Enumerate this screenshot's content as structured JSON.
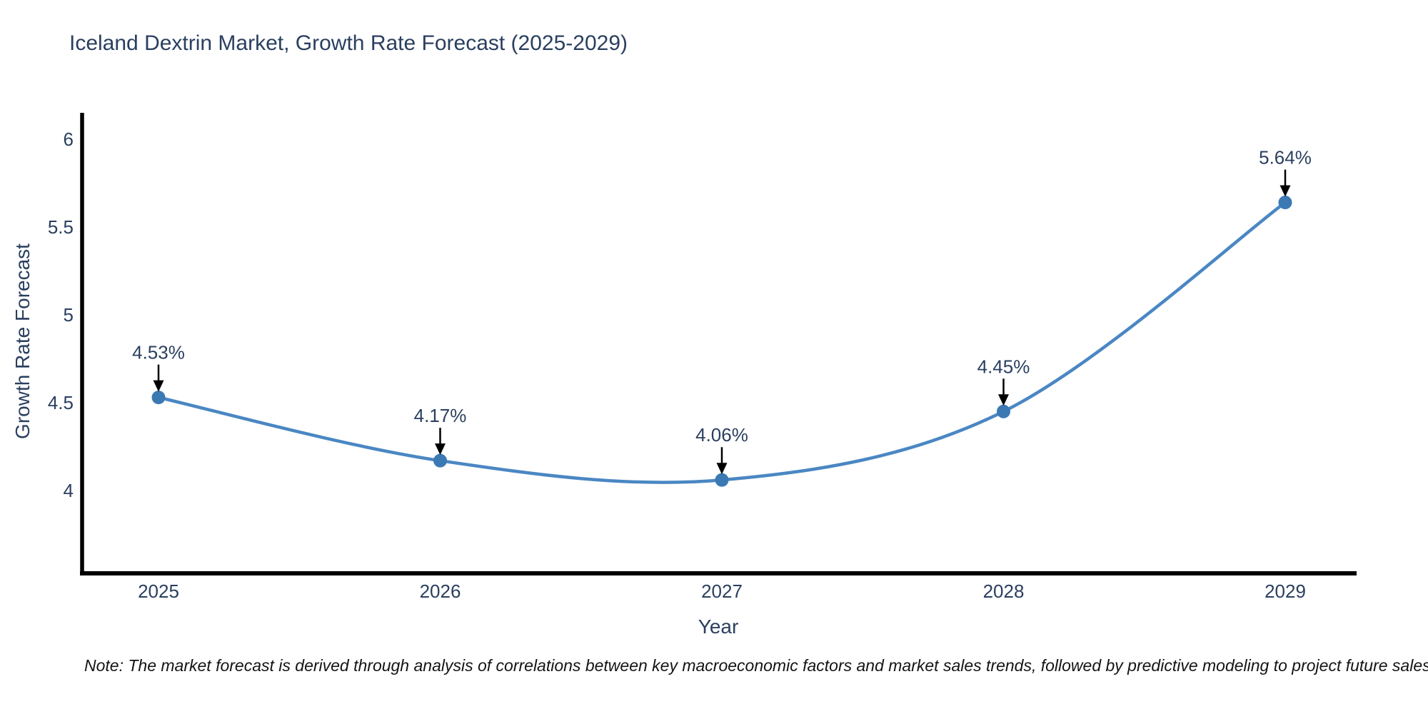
{
  "chart_data": {
    "type": "line",
    "title": "Iceland Dextrin Market, Growth Rate Forecast (2025-2029)",
    "xlabel": "Year",
    "ylabel": "Growth Rate Forecast",
    "x": [
      2025,
      2026,
      2027,
      2028,
      2029
    ],
    "values": [
      4.53,
      4.17,
      4.06,
      4.45,
      5.64
    ],
    "point_labels": [
      "4.53%",
      "4.17%",
      "4.06%",
      "4.45%",
      "5.64%"
    ],
    "xtick_labels": [
      "2025",
      "2026",
      "2027",
      "2028",
      "2029"
    ],
    "yticks": [
      4,
      4.5,
      5,
      5.5,
      6
    ],
    "ytick_labels": [
      "4",
      "4.5",
      "5",
      "5.5",
      "6"
    ],
    "ylim": [
      3.52,
      6.15
    ],
    "grid": false,
    "legend_position": "none",
    "line_color": "#4a87c3",
    "marker_color": "#3b79b3",
    "axis_color": "#000000",
    "text_color": "#2a3f5f",
    "annotation_arrow_color": "#000000"
  },
  "note": "Note: The market forecast is derived through analysis of correlations between key macroeconomic factors and market sales trends, followed by predictive modeling to project future sales"
}
